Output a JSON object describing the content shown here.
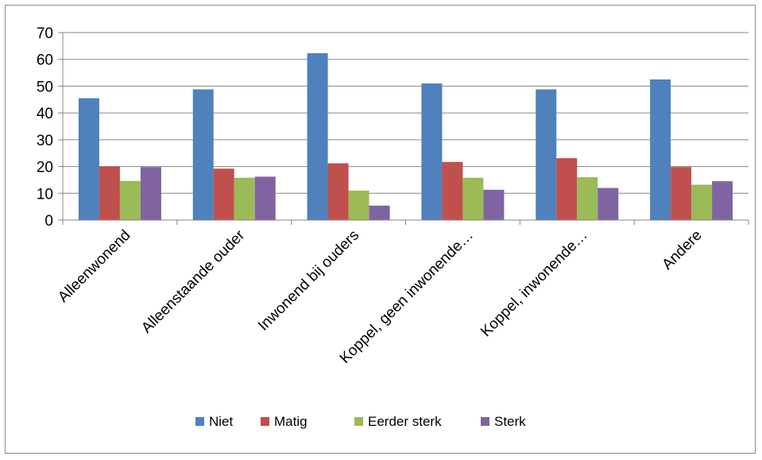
{
  "chart_data": {
    "type": "bar",
    "categories": [
      "Alleenwonend",
      "Alleenstaande ouder",
      "Inwonend bij ouders",
      "Koppel, geen inwonende…",
      "Koppel, inwonende…",
      "Andere"
    ],
    "series": [
      {
        "name": "Niet",
        "color": "#4f81bd",
        "values": [
          45.5,
          48.8,
          62.3,
          51.0,
          48.8,
          52.5
        ]
      },
      {
        "name": "Matig",
        "color": "#c0504d",
        "values": [
          20.0,
          19.2,
          21.2,
          21.7,
          23.1,
          19.8
        ]
      },
      {
        "name": "Eerder sterk",
        "color": "#9bbb59",
        "values": [
          14.6,
          15.8,
          11.0,
          15.8,
          16.0,
          13.2
        ]
      },
      {
        "name": "Sterk",
        "color": "#8064a2",
        "values": [
          19.8,
          16.2,
          5.4,
          11.3,
          12.0,
          14.5
        ]
      }
    ],
    "yticks": [
      0,
      10,
      20,
      30,
      40,
      50,
      60,
      70
    ],
    "ylim": [
      0,
      70
    ],
    "grid": true,
    "legend_position": "bottom"
  }
}
